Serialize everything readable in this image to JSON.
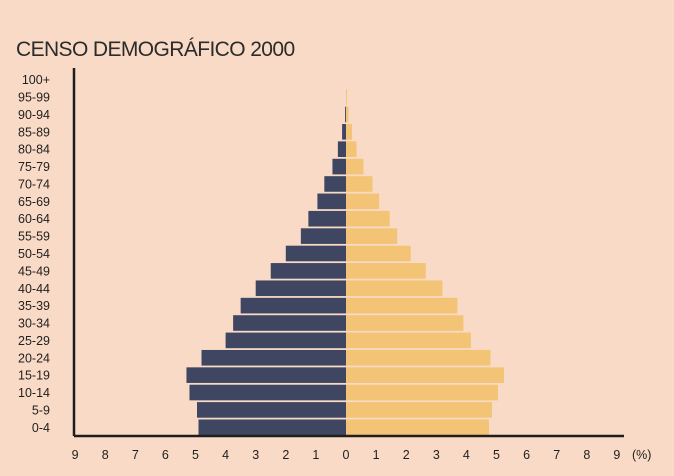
{
  "chart_data": {
    "type": "bar",
    "orientation": "horizontal",
    "layout": "population-pyramid",
    "title": "CENSO DEMOGRÁFICO 2000",
    "xlabel": "(%)",
    "ylabel": "",
    "xlim": [
      -9,
      9
    ],
    "x_ticks": [
      "9",
      "8",
      "7",
      "6",
      "5",
      "4",
      "3",
      "2",
      "1",
      "0",
      "1",
      "2",
      "3",
      "4",
      "5",
      "6",
      "7",
      "8",
      "9"
    ],
    "categories": [
      "100+",
      "95-99",
      "90-94",
      "85-89",
      "80-84",
      "75-79",
      "70-74",
      "65-69",
      "60-64",
      "55-59",
      "50-54",
      "45-49",
      "40-44",
      "35-39",
      "30-34",
      "25-29",
      "20-24",
      "15-19",
      "10-14",
      "5-9",
      "0-4"
    ],
    "series": [
      {
        "side": "left",
        "color": "#3f4661",
        "values": [
          0,
          0,
          0.03,
          0.13,
          0.27,
          0.45,
          0.72,
          0.95,
          1.25,
          1.5,
          2.0,
          2.5,
          3.0,
          3.5,
          3.75,
          4.0,
          4.8,
          5.3,
          5.2,
          4.95,
          4.9
        ]
      },
      {
        "side": "right",
        "color": "#f3c376",
        "values": [
          0,
          0.03,
          0.08,
          0.2,
          0.35,
          0.58,
          0.88,
          1.1,
          1.45,
          1.7,
          2.15,
          2.65,
          3.2,
          3.7,
          3.9,
          4.15,
          4.8,
          5.25,
          5.05,
          4.85,
          4.75
        ]
      }
    ],
    "grid": false,
    "legend": "none"
  }
}
